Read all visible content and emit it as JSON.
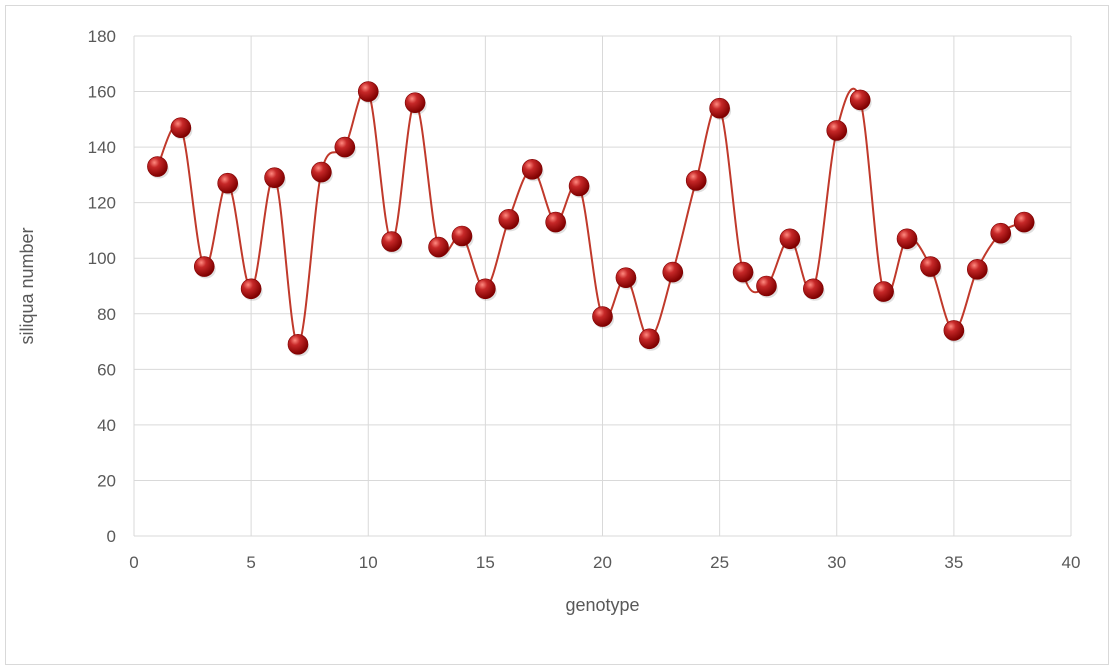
{
  "chart_data": {
    "type": "scatter",
    "xlabel": "genotype",
    "ylabel": "siliqua number",
    "xlim": [
      0,
      40
    ],
    "ylim": [
      0,
      180
    ],
    "xticks": [
      0,
      5,
      10,
      15,
      20,
      25,
      30,
      35,
      40
    ],
    "yticks": [
      0,
      20,
      40,
      60,
      80,
      100,
      120,
      140,
      160,
      180
    ],
    "grid": true,
    "legend": "none",
    "line_style": "smooth",
    "colors": {
      "line": "#c0392b",
      "marker_fill": "#c62828",
      "marker_highlight": "#ff8a80",
      "marker_dark": "#7f0000",
      "grid": "#d9d9d9",
      "axis_text": "#595959"
    },
    "series": [
      {
        "x": [
          1,
          2,
          3,
          4,
          5,
          6,
          7,
          8,
          9,
          10,
          11,
          12,
          13,
          14,
          15,
          16,
          17,
          18,
          19,
          20,
          21,
          22,
          23,
          24,
          25,
          26,
          27,
          28,
          29,
          30,
          31,
          32,
          33,
          34,
          35,
          36,
          37,
          38
        ],
        "values": [
          133,
          147,
          97,
          127,
          89,
          129,
          69,
          131,
          140,
          160,
          106,
          156,
          104,
          108,
          89,
          114,
          132,
          113,
          126,
          79,
          93,
          71,
          95,
          128,
          154,
          95,
          90,
          107,
          89,
          146,
          157,
          88,
          107,
          97,
          74,
          96,
          109,
          113
        ]
      }
    ]
  }
}
